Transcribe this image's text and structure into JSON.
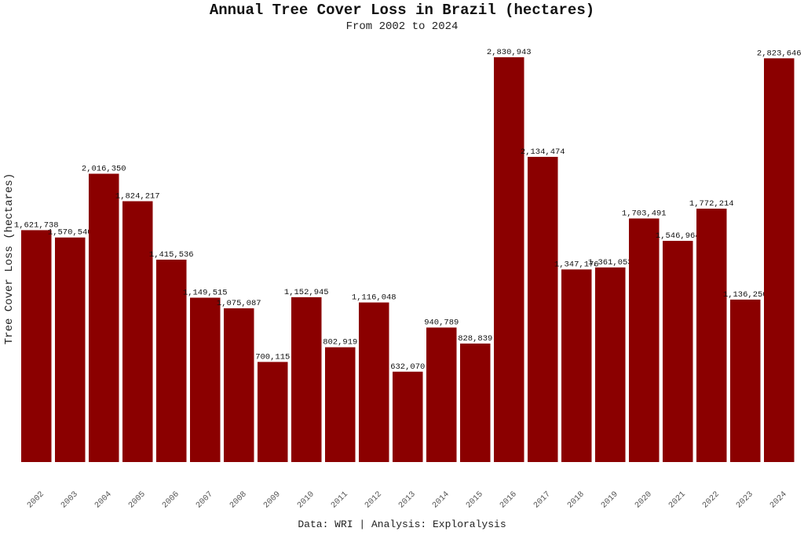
{
  "chart_data": {
    "type": "bar",
    "title": "Annual Tree Cover Loss in Brazil (hectares)",
    "subtitle": "From 2002 to 2024",
    "xlabel": "",
    "ylabel": "Tree Cover Loss (hectares)",
    "caption": "Data: WRI | Analysis: Exploralysis",
    "categories": [
      "2002",
      "2003",
      "2004",
      "2005",
      "2006",
      "2007",
      "2008",
      "2009",
      "2010",
      "2011",
      "2012",
      "2013",
      "2014",
      "2015",
      "2016",
      "2017",
      "2018",
      "2019",
      "2020",
      "2021",
      "2022",
      "2023",
      "2024"
    ],
    "values": [
      1621738,
      1570540,
      2016350,
      1824217,
      1415536,
      1149515,
      1075087,
      700115,
      1152945,
      802919,
      1116048,
      632070,
      940789,
      828839,
      2830943,
      2134474,
      1347176,
      1361053,
      1703491,
      1546964,
      1772214,
      1136250,
      2823646
    ],
    "labels": [
      "1,621,738",
      "1,570,540",
      "2,016,350",
      "1,824,217",
      "1,415,536",
      "1,149,515",
      "1,075,087",
      "700,115",
      "1,152,945",
      "802,919",
      "1,116,048",
      "632,070",
      "940,789",
      "828,839",
      "2,830,943",
      "2,134,474",
      "1,347,176",
      "1,361,053",
      "1,703,491",
      "1,546,964",
      "1,772,214",
      "1,136,250",
      "2,823,646"
    ],
    "ylim": [
      0,
      2830943
    ],
    "grid": false,
    "bar_color": "#8b0000"
  }
}
